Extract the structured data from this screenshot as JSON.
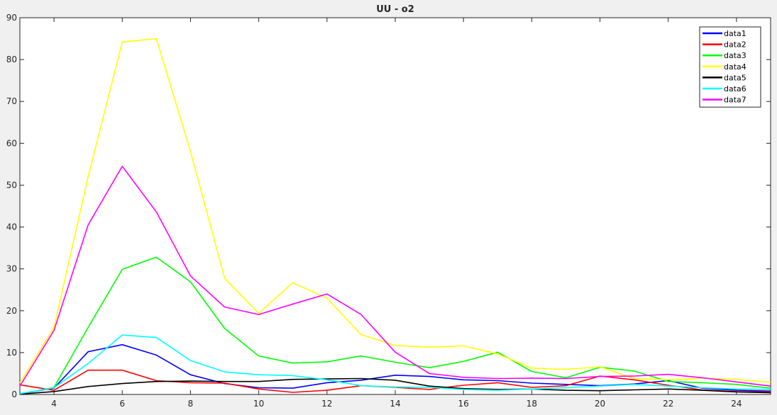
{
  "chart_data": {
    "type": "line",
    "title": "UU - o2",
    "xlabel": "",
    "ylabel": "",
    "xlim": [
      3,
      25
    ],
    "ylim": [
      0,
      90
    ],
    "xticks": [
      4,
      6,
      8,
      10,
      12,
      14,
      16,
      18,
      20,
      22,
      24
    ],
    "yticks": [
      0,
      10,
      20,
      30,
      40,
      50,
      60,
      70,
      80,
      90
    ],
    "grid": false,
    "legend_position": "top-right",
    "x": [
      3,
      4,
      5,
      6,
      7,
      8,
      9,
      10,
      11,
      12,
      13,
      14,
      15,
      16,
      17,
      18,
      19,
      20,
      21,
      22,
      23,
      24,
      25
    ],
    "series": [
      {
        "name": "data1",
        "color": "#0000ff",
        "values": [
          0.2,
          1.5,
          10.2,
          11.9,
          9.4,
          4.7,
          2.6,
          1.6,
          1.5,
          2.8,
          3.4,
          4.6,
          4.3,
          3.5,
          3.3,
          2.7,
          2.4,
          2.1,
          2.5,
          3.3,
          1.5,
          1.0,
          0.8
        ]
      },
      {
        "name": "data2",
        "color": "#ff0000",
        "values": [
          2.3,
          1.0,
          5.8,
          5.8,
          3.3,
          2.8,
          2.7,
          1.3,
          0.5,
          1.0,
          2.1,
          1.7,
          1.2,
          2.2,
          2.8,
          1.7,
          2.1,
          4.4,
          3.5,
          2.2,
          1.1,
          0.7,
          0.6
        ]
      },
      {
        "name": "data3",
        "color": "#00ff00",
        "values": [
          0.1,
          1.7,
          16.0,
          29.9,
          32.8,
          26.9,
          15.8,
          9.2,
          7.5,
          7.8,
          9.2,
          7.7,
          6.4,
          7.9,
          10.1,
          5.5,
          4.0,
          6.5,
          5.6,
          3.1,
          2.8,
          2.4,
          1.5
        ]
      },
      {
        "name": "data4",
        "color": "#ffff00",
        "values": [
          2.8,
          16.0,
          52.0,
          84.2,
          85.0,
          58.0,
          27.8,
          19.4,
          26.7,
          23.0,
          14.3,
          11.7,
          11.3,
          11.6,
          9.7,
          6.3,
          6.0,
          6.6,
          3.8,
          3.5,
          3.9,
          3.6,
          2.9
        ]
      },
      {
        "name": "data5",
        "color": "#000000",
        "values": [
          0.1,
          0.7,
          1.9,
          2.6,
          3.1,
          3.2,
          3.1,
          3.1,
          3.6,
          3.7,
          3.8,
          3.4,
          2.0,
          1.4,
          1.2,
          1.3,
          1.0,
          0.9,
          1.1,
          1.3,
          1.0,
          0.6,
          0.4
        ]
      },
      {
        "name": "data6",
        "color": "#00ffff",
        "values": [
          0.2,
          1.6,
          7.4,
          14.2,
          13.6,
          8.1,
          5.4,
          4.7,
          4.5,
          3.5,
          2.1,
          1.8,
          1.7,
          1.2,
          1.0,
          1.3,
          1.6,
          2.0,
          2.4,
          2.0,
          1.6,
          1.3,
          1.2
        ]
      },
      {
        "name": "data7",
        "color": "#ff00ff",
        "values": [
          2.0,
          15.3,
          40.5,
          54.5,
          43.6,
          28.3,
          20.9,
          19.1,
          21.6,
          24.0,
          19.1,
          10.1,
          5.0,
          4.1,
          3.8,
          3.9,
          3.8,
          4.3,
          4.4,
          4.8,
          4.0,
          3.0,
          2.0
        ]
      }
    ]
  }
}
